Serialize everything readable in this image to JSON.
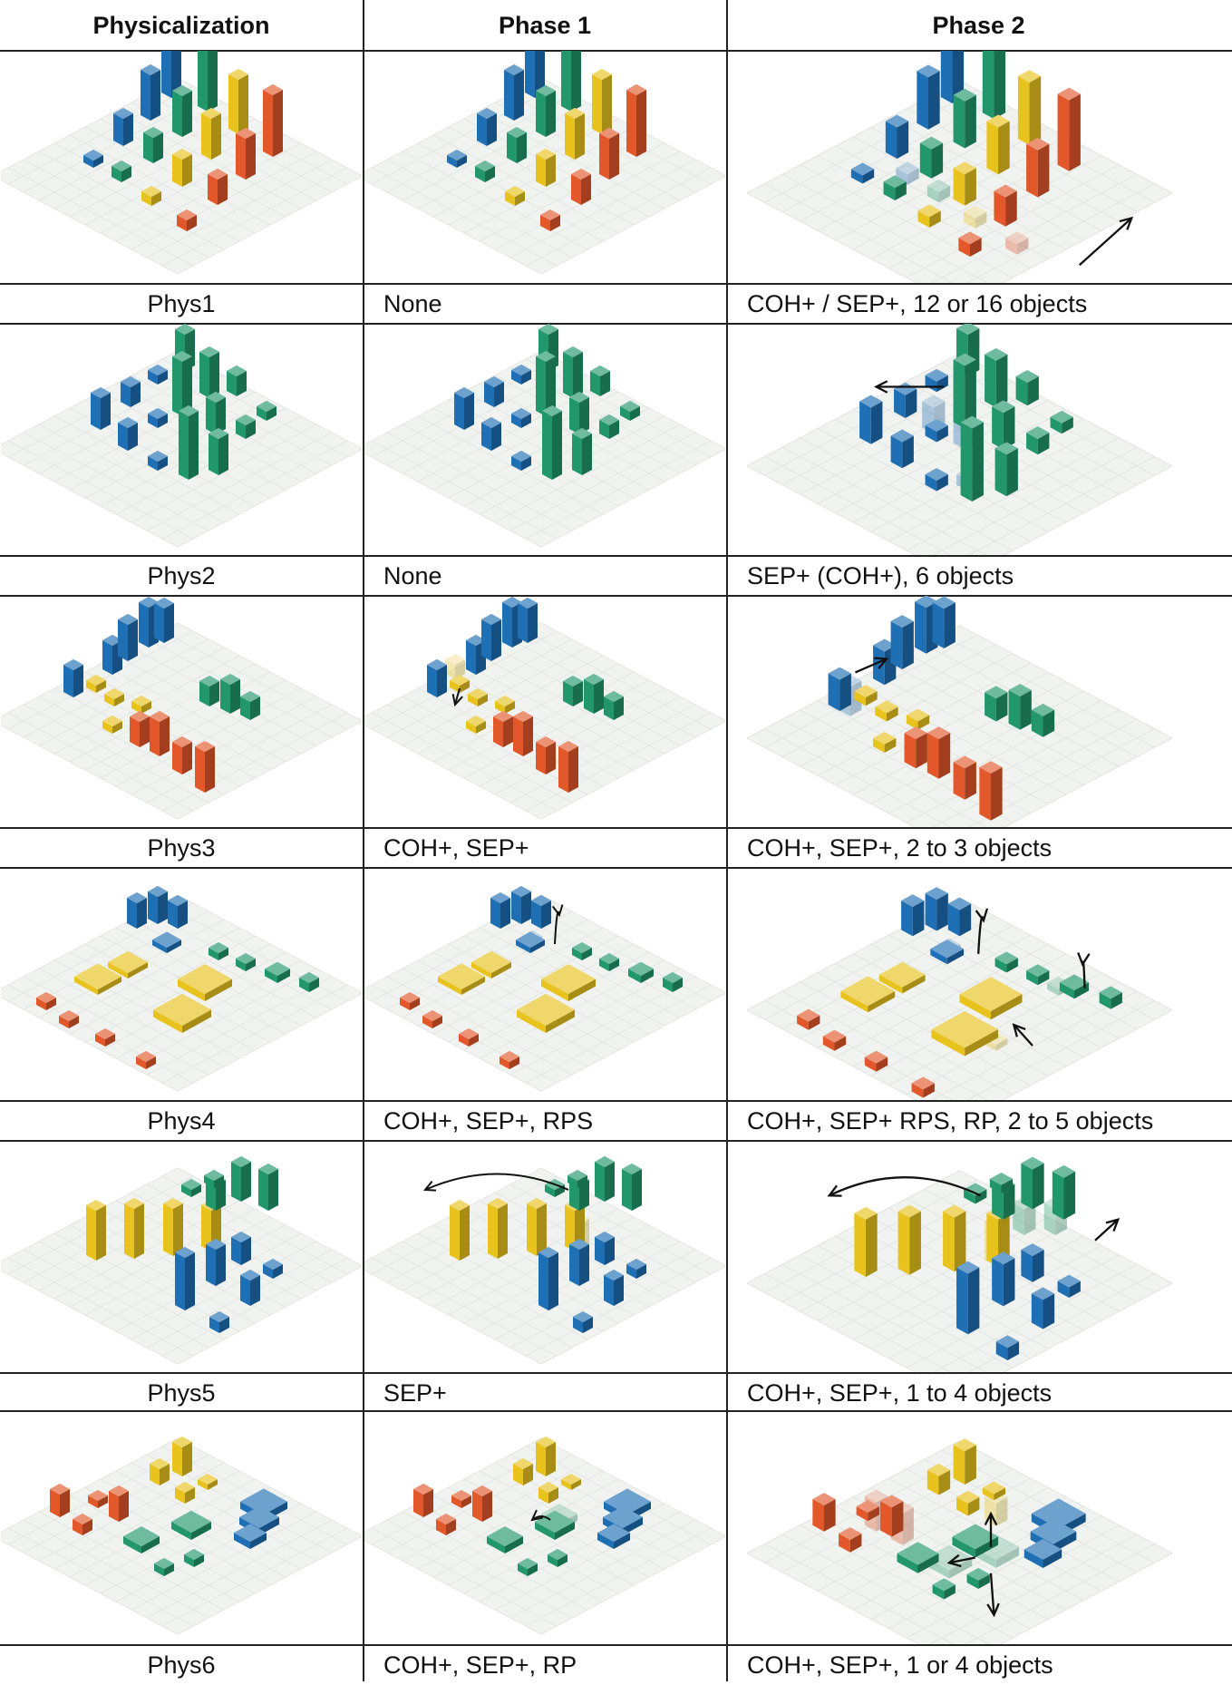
{
  "header": {
    "col1": "Physicalization",
    "col2": "Phase 1",
    "col3": "Phase 2"
  },
  "rows": [
    {
      "name": "Phys1",
      "phase1": "None",
      "phase2": "COH+ / SEP+, 12 or 16 objects"
    },
    {
      "name": "Phys2",
      "phase1": "None",
      "phase2": "SEP+ (COH+), 6 objects"
    },
    {
      "name": "Phys3",
      "phase1": "COH+, SEP+",
      "phase2": "COH+, SEP+, 2 to 3 objects"
    },
    {
      "name": "Phys4",
      "phase1": "COH+, SEP+, RPS",
      "phase2": "COH+, SEP+ RPS, RP, 2 to 5 objects"
    },
    {
      "name": "Phys5",
      "phase1": "SEP+",
      "phase2": "COH+, SEP+, 1 to 4 objects"
    },
    {
      "name": "Phys6",
      "phase1": "COH+, SEP+, RP",
      "phase2": "COH+, SEP+, 1 or 4 objects"
    }
  ],
  "colors": {
    "blue": "#1f6fb4",
    "green": "#22976b",
    "yellow": "#e8c21d",
    "red": "#e2582a",
    "floor": "#f1f3f1"
  }
}
